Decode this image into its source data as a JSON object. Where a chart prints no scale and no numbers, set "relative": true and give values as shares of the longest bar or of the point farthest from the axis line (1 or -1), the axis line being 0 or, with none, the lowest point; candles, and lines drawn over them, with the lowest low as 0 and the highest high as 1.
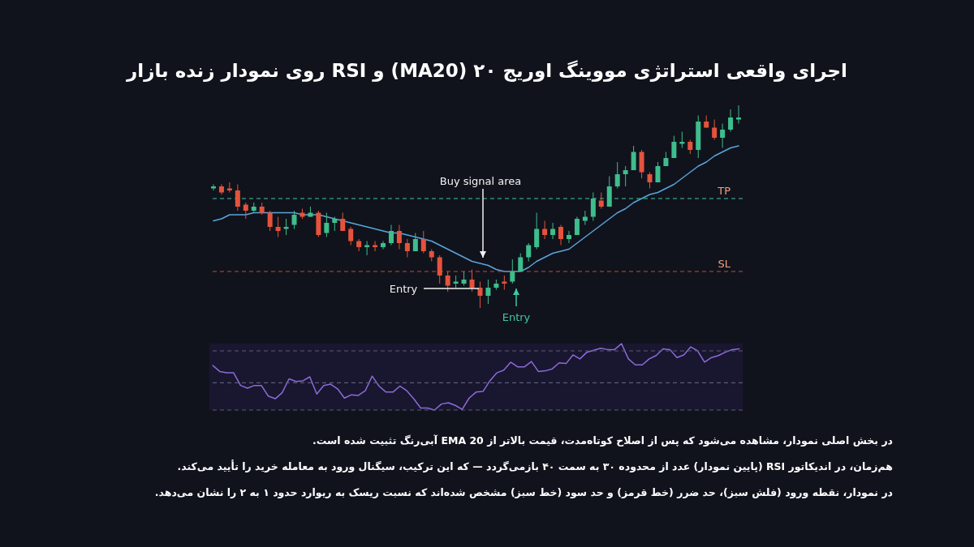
{
  "chart_data": [
    {
      "type": "candlestick",
      "title": "اجرای واقعی استراتژی مووینگ اوریج ۲۰ (MA20) و RSI  روی نمودار زنده بازار",
      "relative": true,
      "tick_labels": false,
      "categories": [
        null,
        null,
        null,
        null,
        null,
        null,
        null,
        null,
        null,
        null,
        null,
        null,
        null,
        null,
        null,
        null,
        null,
        null,
        null,
        null,
        null,
        null,
        null,
        null,
        null,
        null,
        null,
        null,
        null,
        null,
        null,
        null,
        null,
        null,
        null,
        null,
        null,
        null,
        null,
        null,
        null,
        null,
        null,
        null,
        null,
        null,
        null,
        null,
        null,
        null,
        null,
        null,
        null,
        null,
        null,
        null,
        null,
        null,
        null,
        null,
        null,
        null,
        null,
        null,
        null,
        null
      ],
      "ohlc": [
        [
          0.59,
          0.61,
          0.58,
          0.6
        ],
        [
          0.6,
          0.61,
          0.56,
          0.57
        ],
        [
          0.59,
          0.62,
          0.57,
          0.58
        ],
        [
          0.58,
          0.61,
          0.48,
          0.5
        ],
        [
          0.51,
          0.52,
          0.44,
          0.48
        ],
        [
          0.48,
          0.52,
          0.47,
          0.5
        ],
        [
          0.5,
          0.52,
          0.46,
          0.47
        ],
        [
          0.47,
          0.48,
          0.38,
          0.4
        ],
        [
          0.4,
          0.45,
          0.35,
          0.38
        ],
        [
          0.39,
          0.44,
          0.36,
          0.4
        ],
        [
          0.41,
          0.48,
          0.39,
          0.46
        ],
        [
          0.47,
          0.49,
          0.44,
          0.45
        ],
        [
          0.45,
          0.5,
          0.45,
          0.47
        ],
        [
          0.47,
          0.48,
          0.35,
          0.36
        ],
        [
          0.37,
          0.47,
          0.35,
          0.42
        ],
        [
          0.42,
          0.45,
          0.38,
          0.44
        ],
        [
          0.44,
          0.47,
          0.38,
          0.38
        ],
        [
          0.39,
          0.4,
          0.31,
          0.33
        ],
        [
          0.33,
          0.34,
          0.28,
          0.3
        ],
        [
          0.3,
          0.33,
          0.26,
          0.31
        ],
        [
          0.31,
          0.33,
          0.28,
          0.3
        ],
        [
          0.3,
          0.33,
          0.29,
          0.32
        ],
        [
          0.32,
          0.41,
          0.31,
          0.38
        ],
        [
          0.38,
          0.41,
          0.29,
          0.32
        ],
        [
          0.32,
          0.34,
          0.25,
          0.28
        ],
        [
          0.28,
          0.37,
          0.28,
          0.34
        ],
        [
          0.34,
          0.38,
          0.27,
          0.28
        ],
        [
          0.28,
          0.29,
          0.23,
          0.25
        ],
        [
          0.25,
          0.26,
          0.12,
          0.16
        ],
        [
          0.16,
          0.18,
          0.08,
          0.11
        ],
        [
          0.12,
          0.16,
          0.1,
          0.13
        ],
        [
          0.12,
          0.18,
          0.11,
          0.14
        ],
        [
          0.14,
          0.19,
          0.08,
          0.1
        ],
        [
          0.1,
          0.13,
          0,
          0.06
        ],
        [
          0.06,
          0.14,
          0.02,
          0.1
        ],
        [
          0.1,
          0.14,
          0.09,
          0.12
        ],
        [
          0.13,
          0.16,
          0.09,
          0.12
        ],
        [
          0.13,
          0.24,
          0.12,
          0.18
        ],
        [
          0.18,
          0.27,
          0.18,
          0.25
        ],
        [
          0.25,
          0.32,
          0.23,
          0.31
        ],
        [
          0.3,
          0.47,
          0.29,
          0.39
        ],
        [
          0.39,
          0.43,
          0.34,
          0.36
        ],
        [
          0.36,
          0.42,
          0.34,
          0.39
        ],
        [
          0.4,
          0.41,
          0.31,
          0.34
        ],
        [
          0.34,
          0.38,
          0.32,
          0.36
        ],
        [
          0.36,
          0.45,
          0.36,
          0.44
        ],
        [
          0.43,
          0.48,
          0.41,
          0.45
        ],
        [
          0.45,
          0.57,
          0.43,
          0.54
        ],
        [
          0.53,
          0.57,
          0.49,
          0.5
        ],
        [
          0.5,
          0.65,
          0.5,
          0.6
        ],
        [
          0.6,
          0.72,
          0.59,
          0.66
        ],
        [
          0.66,
          0.7,
          0.6,
          0.68
        ],
        [
          0.68,
          0.8,
          0.68,
          0.77
        ],
        [
          0.77,
          0.78,
          0.64,
          0.67
        ],
        [
          0.66,
          0.67,
          0.59,
          0.62
        ],
        [
          0.62,
          0.72,
          0.62,
          0.7
        ],
        [
          0.7,
          0.77,
          0.7,
          0.74
        ],
        [
          0.74,
          0.85,
          0.74,
          0.82
        ],
        [
          0.81,
          0.87,
          0.79,
          0.82
        ],
        [
          0.82,
          0.83,
          0.76,
          0.78
        ],
        [
          0.78,
          0.95,
          0.74,
          0.92
        ],
        [
          0.92,
          0.95,
          0.89,
          0.89
        ],
        [
          0.89,
          0.93,
          0.83,
          0.84
        ],
        [
          0.84,
          0.91,
          0.79,
          0.88
        ],
        [
          0.88,
          0.98,
          0.87,
          0.94
        ],
        [
          0.93,
          1,
          0.91,
          0.94
        ]
      ],
      "colors": [
        "#3ebd8d",
        "#e5533c",
        "#e5533c",
        "#e5533c",
        "#e5533c",
        "#3ebd8d",
        "#e5533c",
        "#e5533c",
        "#e5533c",
        "#3ebd8d",
        "#3ebd8d",
        "#e5533c",
        "#3ebd8d",
        "#e5533c",
        "#3ebd8d",
        "#3ebd8d",
        "#e5533c",
        "#e5533c",
        "#e5533c",
        "#3ebd8d",
        "#e5533c",
        "#3ebd8d",
        "#3ebd8d",
        "#e5533c",
        "#e5533c",
        "#3ebd8d",
        "#e5533c",
        "#e5533c",
        "#e5533c",
        "#e5533c",
        "#3ebd8d",
        "#3ebd8d",
        "#e5533c",
        "#e5533c",
        "#3ebd8d",
        "#3ebd8d",
        "#e5533c",
        "#3ebd8d",
        "#3ebd8d",
        "#3ebd8d",
        "#3ebd8d",
        "#e5533c",
        "#3ebd8d",
        "#e5533c",
        "#3ebd8d",
        "#3ebd8d",
        "#3ebd8d",
        "#3ebd8d",
        "#e5533c",
        "#3ebd8d",
        "#3ebd8d",
        "#3ebd8d",
        "#3ebd8d",
        "#e5533c",
        "#e5533c",
        "#3ebd8d",
        "#3ebd8d",
        "#3ebd8d",
        "#3ebd8d",
        "#e5533c",
        "#3ebd8d",
        "#e5533c",
        "#e5533c",
        "#3ebd8d",
        "#3ebd8d",
        "#3ebd8d"
      ],
      "series": [
        {
          "type": "line",
          "color": "#5ba4dc",
          "values": [
            0.43,
            0.44,
            0.46,
            0.46,
            0.46,
            0.47,
            0.47,
            0.47,
            0.47,
            0.47,
            0.47,
            0.46,
            0.46,
            0.46,
            0.45,
            0.44,
            0.43,
            0.42,
            0.41,
            0.4,
            0.39,
            0.38,
            0.37,
            0.37,
            0.36,
            0.35,
            0.34,
            0.33,
            0.31,
            0.29,
            0.27,
            0.25,
            0.23,
            0.22,
            0.21,
            0.19,
            0.18,
            0.18,
            0.18,
            0.2,
            0.23,
            0.25,
            0.27,
            0.28,
            0.29,
            0.32,
            0.35,
            0.38,
            0.41,
            0.44,
            0.47,
            0.49,
            0.52,
            0.54,
            0.56,
            0.57,
            0.59,
            0.61,
            0.64,
            0.67,
            0.7,
            0.72,
            0.75,
            0.77,
            0.79,
            0.8
          ]
        }
      ],
      "ref_lines": [
        {
          "axis": "y",
          "value": 0.54,
          "label": "TP",
          "color": "#3ec79e",
          "line_style": "dashed"
        },
        {
          "axis": "y",
          "value": 0.18,
          "label": "SL",
          "color": "#c9463d",
          "line_style": "dashed"
        }
      ],
      "annotations": [
        "Buy signal area",
        "Entry",
        "Entry",
        "در بخش اصلی نمودار، مشاهده می‌شود که پس از اصلاح کوتاه‌مدت، قیمت بالاتر از EMA 20 آبی‌رنگ تثبیت شده است.",
        "هم‌زمان، در اندیکاتور RSI (پایین نمودار) عدد از محدوده ۳۰ به سمت ۴۰ بازمی‌گردد — که این ترکیب، سیگنال ورود به معامله خرید را تأیید می‌کند.",
        "در نمودار، نقطه ورود (فلش سبز)، حد ضرر (خط قرمز) و حد سود (خط سبز) مشخص شده‌اند که نسبت ریسک به ریوارد حدود ۱ به ۲ را نشان می‌دهد."
      ]
    },
    {
      "type": "line",
      "relative": true,
      "tick_labels": false,
      "categories": [
        null,
        null,
        null,
        null,
        null,
        null,
        null,
        null,
        null,
        null,
        null,
        null,
        null,
        null,
        null,
        null,
        null,
        null,
        null,
        null,
        null,
        null,
        null,
        null,
        null,
        null,
        null,
        null,
        null,
        null,
        null,
        null,
        null,
        null,
        null,
        null,
        null,
        null,
        null,
        null,
        null,
        null,
        null,
        null,
        null,
        null,
        null,
        null,
        null,
        null,
        null,
        null,
        null,
        null,
        null,
        null,
        null,
        null,
        null,
        null,
        null,
        null,
        null,
        null,
        null,
        null,
        null,
        null,
        null,
        null,
        null,
        null,
        null,
        null,
        null,
        null,
        null
      ],
      "series": [
        {
          "color": "#8c6bd6",
          "values": [
            0.67,
            0.58,
            0.56,
            0.56,
            0.37,
            0.33,
            0.37,
            0.37,
            0.21,
            0.17,
            0.26,
            0.47,
            0.43,
            0.44,
            0.5,
            0.24,
            0.37,
            0.39,
            0.32,
            0.18,
            0.23,
            0.22,
            0.29,
            0.51,
            0.36,
            0.27,
            0.27,
            0.36,
            0.29,
            0.17,
            0.03,
            0.03,
            0,
            0.09,
            0.11,
            0.07,
            0.01,
            0.18,
            0.27,
            0.28,
            0.44,
            0.56,
            0.6,
            0.72,
            0.65,
            0.65,
            0.73,
            0.58,
            0.59,
            0.62,
            0.71,
            0.7,
            0.83,
            0.77,
            0.87,
            0.9,
            0.93,
            0.91,
            0.91,
            1,
            0.77,
            0.68,
            0.68,
            0.77,
            0.82,
            0.92,
            0.91,
            0.79,
            0.83,
            0.95,
            0.89,
            0.72,
            0.79,
            0.82,
            0.87,
            0.91,
            0.92
          ]
        }
      ],
      "ref_lines": [
        {
          "axis": "y",
          "value": 0.89,
          "color": "#5c5a78",
          "line_style": "dashed"
        },
        {
          "axis": "y",
          "value": 0.41,
          "color": "#5c5a78",
          "line_style": "dashed"
        },
        {
          "axis": "y",
          "value": 0,
          "color": "#5c5a78",
          "line_style": "dashed"
        }
      ]
    }
  ]
}
